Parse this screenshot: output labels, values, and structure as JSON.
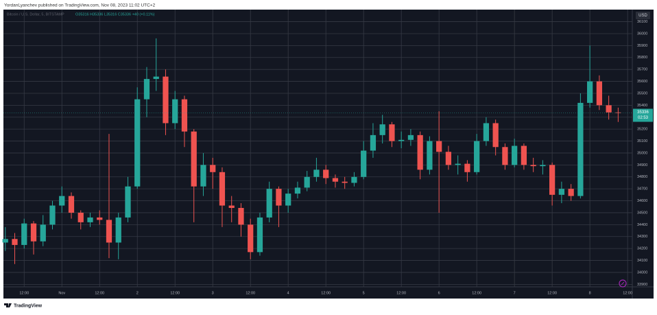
{
  "header": {
    "text": "YordanLyanchev published on TradingView.com, Nov 08, 2023 11:02 UTC+2"
  },
  "chart_data": {
    "type": "candlestick",
    "title": "Bitcoin / U.S. Dollar, 5, BITSTAMP",
    "info": "O35316 H35336 L35316 C35336 +40 (+0.11%)",
    "currency": "USD",
    "countdown": "02:53",
    "up_color": "#26a69a",
    "down_color": "#ef5350",
    "grid": true,
    "xlim": [
      -0.2,
      66.5
    ],
    "xticks": [
      {
        "value": 2,
        "label": "12:00"
      },
      {
        "value": 6,
        "label": "Nov"
      },
      {
        "value": 10,
        "label": "12:00"
      },
      {
        "value": 14,
        "label": "2"
      },
      {
        "value": 18,
        "label": "12:00"
      },
      {
        "value": 22,
        "label": "3"
      },
      {
        "value": 26,
        "label": "12:00"
      },
      {
        "value": 30,
        "label": "4"
      },
      {
        "value": 34,
        "label": "12:00"
      },
      {
        "value": 38,
        "label": "5"
      },
      {
        "value": 42,
        "label": "12:00"
      },
      {
        "value": 46,
        "label": "6"
      },
      {
        "value": 50,
        "label": "12:00"
      },
      {
        "value": 54,
        "label": "7"
      },
      {
        "value": 58,
        "label": "12:00"
      },
      {
        "value": 62,
        "label": "8"
      },
      {
        "value": 66,
        "label": "12:00"
      }
    ],
    "ylim": [
      33879,
      36201
    ],
    "yticks": [
      33900,
      34000,
      34100,
      34200,
      34300,
      34400,
      34500,
      34600,
      34700,
      34800,
      34900,
      35000,
      35100,
      35200,
      35300,
      35400,
      35500,
      35600,
      35700,
      35800,
      35900,
      36000,
      36100
    ],
    "open": [
      34250,
      34280,
      34230,
      34410,
      34260,
      34400,
      34560,
      34640,
      34500,
      34420,
      34460,
      34440,
      34250,
      34460,
      34720,
      35450,
      35620,
      35640,
      35250,
      35450,
      35180,
      34720,
      34900,
      34840,
      34560,
      34540,
      34400,
      34170,
      34460,
      34700,
      34560,
      34660,
      34710,
      34800,
      34860,
      34790,
      34760,
      34750,
      34800,
      35020,
      35150,
      35240,
      35100,
      35110,
      35150,
      34860,
      35100,
      35010,
      34900,
      34910,
      34840,
      35100,
      35250,
      35050,
      34900,
      35060,
      34900,
      34890,
      34900,
      34650,
      34700,
      34640,
      35420,
      35600,
      35400,
      35340
    ],
    "high": [
      34380,
      34330,
      34450,
      34430,
      34480,
      34600,
      34720,
      34670,
      34520,
      34500,
      34520,
      35160,
      34500,
      34800,
      35550,
      35720,
      35960,
      35700,
      35520,
      35480,
      35200,
      35000,
      34960,
      34880,
      34640,
      34580,
      34450,
      34500,
      34760,
      34720,
      34700,
      34760,
      34850,
      34960,
      34900,
      34820,
      34800,
      34840,
      35100,
      35250,
      35320,
      35260,
      35180,
      35200,
      35180,
      35140,
      35350,
      35060,
      34980,
      34940,
      35160,
      35300,
      35280,
      35080,
      35120,
      35080,
      34960,
      34940,
      34920,
      34760,
      34740,
      35500,
      35900,
      35650,
      35480,
      35380
    ],
    "low": [
      34180,
      34070,
      34200,
      34150,
      34220,
      34360,
      34500,
      34450,
      34360,
      34380,
      34400,
      34120,
      34110,
      34420,
      34700,
      35300,
      35520,
      35150,
      35200,
      35050,
      34420,
      34640,
      34700,
      34380,
      34420,
      34300,
      34110,
      34140,
      34420,
      34380,
      34500,
      34620,
      34680,
      34760,
      34740,
      34710,
      34700,
      34720,
      34780,
      34960,
      35080,
      35050,
      35040,
      35060,
      34780,
      34820,
      34500,
      34860,
      34820,
      34760,
      34820,
      35060,
      34980,
      34860,
      34880,
      34860,
      34840,
      34820,
      34560,
      34580,
      34600,
      34620,
      35380,
      35360,
      35280,
      35260
    ],
    "close": [
      34280,
      34230,
      34410,
      34260,
      34400,
      34560,
      34640,
      34500,
      34420,
      34460,
      34440,
      34250,
      34460,
      34720,
      35450,
      35620,
      35640,
      35250,
      35450,
      35180,
      34720,
      34900,
      34840,
      34560,
      34540,
      34400,
      34170,
      34460,
      34700,
      34560,
      34660,
      34710,
      34800,
      34860,
      34790,
      34760,
      34750,
      34800,
      35020,
      35150,
      35240,
      35100,
      35110,
      35150,
      34860,
      35100,
      35010,
      34900,
      34910,
      34840,
      35100,
      35250,
      35050,
      34900,
      35060,
      34900,
      34890,
      34900,
      34650,
      34700,
      34640,
      35420,
      35600,
      35400,
      35340,
      35336
    ]
  },
  "footer": {
    "brand": "TradingView"
  }
}
